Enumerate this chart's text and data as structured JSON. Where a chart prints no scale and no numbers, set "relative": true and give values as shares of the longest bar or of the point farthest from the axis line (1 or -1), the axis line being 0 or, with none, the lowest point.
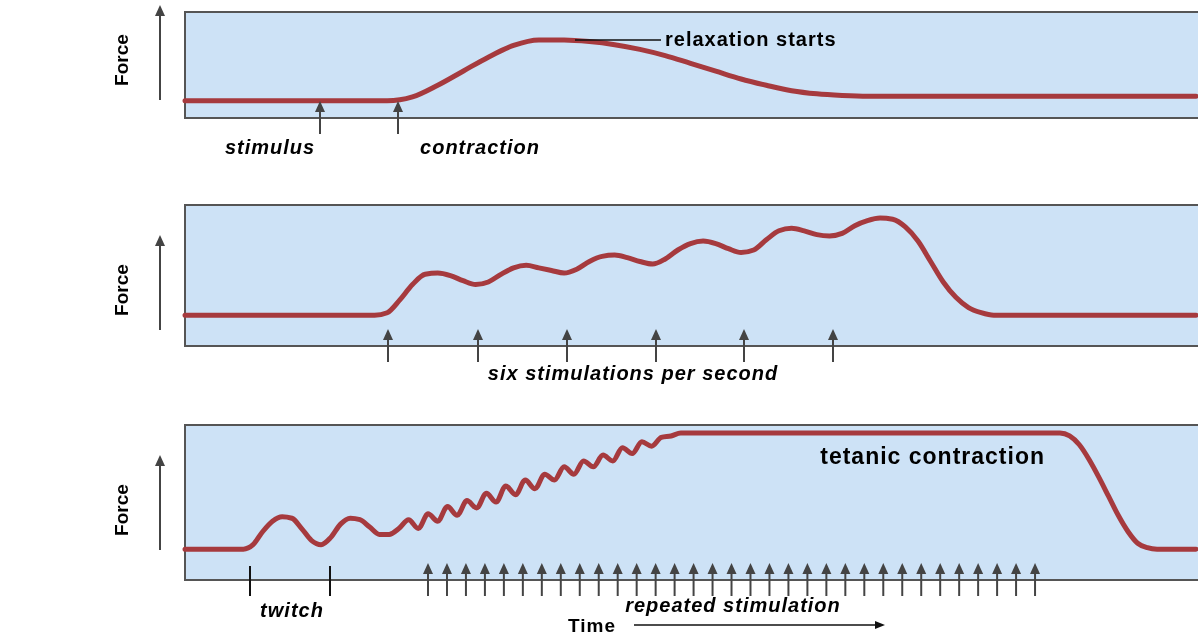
{
  "chart_data": [
    {
      "type": "line",
      "relative": true,
      "ylabel": "Force",
      "annotations": [
        "stimulus",
        "contraction",
        "relaxation starts"
      ],
      "categories": [
        null,
        null,
        null,
        null,
        null,
        null,
        null,
        null,
        null,
        null,
        null,
        null,
        null,
        null,
        null,
        null,
        null,
        null,
        null,
        null,
        null,
        null,
        null,
        null,
        null,
        null,
        null,
        null,
        null,
        null,
        null,
        null,
        null,
        null,
        null,
        null,
        null,
        null,
        null,
        null,
        null
      ],
      "series": [
        {
          "color": "#a63a3e",
          "values": [
            0.22,
            0.22,
            0.22,
            0.22,
            0.22,
            0.22,
            0.22,
            0.22,
            0.22,
            0.27,
            0.42,
            0.6,
            0.78,
            0.93,
            1,
            1,
            0.98,
            0.94,
            0.88,
            0.8,
            0.7,
            0.6,
            0.5,
            0.42,
            0.35,
            0.31,
            0.29,
            0.28,
            0.28,
            0.28,
            0.28,
            0.28,
            0.28,
            0.28,
            0.28,
            0.28,
            0.28,
            0.28,
            0.28,
            0.28,
            0.28
          ]
        }
      ]
    },
    {
      "type": "line",
      "relative": true,
      "ylabel": "Force",
      "annotations": [
        "six stimulations per second"
      ],
      "categories": [
        null,
        null,
        null,
        null,
        null,
        null,
        null,
        null,
        null,
        null,
        null,
        null,
        null,
        null,
        null,
        null,
        null,
        null,
        null,
        null,
        null,
        null,
        null,
        null,
        null,
        null,
        null,
        null,
        null,
        null,
        null,
        null,
        null,
        null,
        null,
        null,
        null,
        null,
        null,
        null,
        null,
        null,
        null,
        null,
        null,
        null,
        null,
        null,
        null,
        null,
        null,
        null,
        null,
        null,
        null,
        null,
        null,
        null,
        null,
        null,
        null,
        null,
        null,
        null,
        null,
        null,
        null,
        null,
        null,
        null,
        null,
        null,
        null,
        null,
        null,
        null,
        null,
        null,
        null,
        null,
        null
      ],
      "series": [
        {
          "color": "#a63a3e",
          "values": [
            0.24,
            0.24,
            0.24,
            0.24,
            0.24,
            0.24,
            0.24,
            0.24,
            0.24,
            0.24,
            0.24,
            0.24,
            0.24,
            0.24,
            0.24,
            0.24,
            0.26,
            0.36,
            0.48,
            0.56,
            0.57,
            0.55,
            0.51,
            0.48,
            0.5,
            0.56,
            0.61,
            0.63,
            0.61,
            0.59,
            0.57,
            0.6,
            0.66,
            0.7,
            0.71,
            0.69,
            0.66,
            0.64,
            0.68,
            0.75,
            0.8,
            0.82,
            0.8,
            0.76,
            0.73,
            0.75,
            0.83,
            0.9,
            0.92,
            0.9,
            0.87,
            0.86,
            0.88,
            0.94,
            0.98,
            1,
            0.99,
            0.93,
            0.82,
            0.66,
            0.5,
            0.38,
            0.3,
            0.26,
            0.24,
            0.24,
            0.24,
            0.24,
            0.24,
            0.24,
            0.24,
            0.24,
            0.24,
            0.24,
            0.24,
            0.24,
            0.24,
            0.24,
            0.24,
            0.24,
            0.24
          ]
        }
      ]
    },
    {
      "type": "line",
      "relative": true,
      "ylabel": "Force",
      "xlabel": "Time",
      "annotations": [
        "tetanic contraction",
        "twitch",
        "repeated stimulation"
      ],
      "categories": [
        null,
        null,
        null,
        null,
        null,
        null,
        null,
        null,
        null,
        null,
        null,
        null,
        null,
        null,
        null,
        null,
        null,
        null,
        null,
        null,
        null,
        null,
        null,
        null,
        null,
        null,
        null,
        null,
        null,
        null,
        null,
        null,
        null,
        null,
        null,
        null,
        null,
        null,
        null,
        null,
        null,
        null,
        null,
        null,
        null,
        null,
        null,
        null,
        null,
        null,
        null,
        null,
        null,
        null,
        null,
        null,
        null,
        null,
        null,
        null,
        null,
        null,
        null,
        null,
        null,
        null,
        null,
        null,
        null,
        null,
        null,
        null,
        null,
        null,
        null,
        null,
        null,
        null,
        null,
        null,
        null,
        null,
        null,
        null,
        null,
        null,
        null,
        null,
        null,
        null,
        null,
        null,
        null,
        null,
        null,
        null,
        null,
        null,
        null,
        null,
        null,
        null,
        null,
        null,
        null
      ],
      "series": [
        {
          "color": "#a63a3e",
          "values": [
            0.21,
            0.21,
            0.21,
            0.21,
            0.21,
            0.21,
            0.21,
            0.24,
            0.33,
            0.4,
            0.43,
            0.42,
            0.35,
            0.27,
            0.24,
            0.29,
            0.38,
            0.42,
            0.41,
            0.36,
            0.31,
            0.31,
            0.35,
            0.41,
            0.35,
            0.45,
            0.4,
            0.5,
            0.44,
            0.54,
            0.49,
            0.59,
            0.53,
            0.64,
            0.58,
            0.68,
            0.62,
            0.72,
            0.68,
            0.77,
            0.72,
            0.81,
            0.77,
            0.85,
            0.81,
            0.9,
            0.86,
            0.94,
            0.91,
            0.97,
            0.98,
            1,
            1,
            1,
            1,
            1,
            1,
            1,
            1,
            1,
            1,
            1,
            1,
            1,
            1,
            1,
            1,
            1,
            1,
            1,
            1,
            1,
            1,
            1,
            1,
            1,
            1,
            1,
            1,
            1,
            1,
            1,
            1,
            1,
            1,
            1,
            1,
            1,
            1,
            1,
            1,
            0.98,
            0.92,
            0.82,
            0.7,
            0.57,
            0.44,
            0.33,
            0.25,
            0.22,
            0.21,
            0.21,
            0.21,
            0.21,
            0.21
          ]
        }
      ]
    }
  ]
}
